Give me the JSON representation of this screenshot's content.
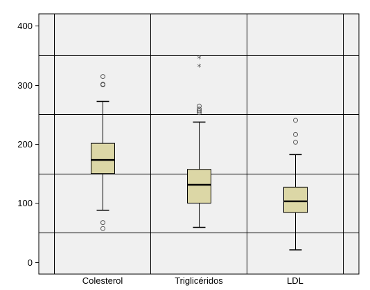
{
  "colors": {
    "plot_background": "#f0f0f0",
    "box_fill": "#dcd7a6",
    "line": "#000000",
    "outlier_marker": "#555555"
  },
  "chart_data": {
    "type": "boxplot",
    "categories": [
      "Colesterol",
      "Triglicéridos",
      "LDL"
    ],
    "ylim": [
      -20,
      420
    ],
    "yticks": [
      0,
      100,
      200,
      300,
      400
    ],
    "grid_lines_y": [
      50,
      150,
      250,
      350
    ],
    "grid": true,
    "boxes": [
      {
        "category": "Colesterol",
        "whisker_low": 88,
        "q1": 150,
        "median": 173,
        "q3": 201,
        "whisker_high": 272,
        "outliers": [
          57,
          67,
          300,
          301,
          314
        ],
        "extremes": []
      },
      {
        "category": "Triglicéridos",
        "whisker_low": 59,
        "q1": 100,
        "median": 131,
        "q3": 157,
        "whisker_high": 237,
        "outliers": [
          253,
          256,
          259,
          264
        ],
        "extremes": [
          331,
          345
        ]
      },
      {
        "category": "LDL",
        "whisker_low": 21,
        "q1": 84,
        "median": 103,
        "q3": 127,
        "whisker_high": 182,
        "outliers": [
          203,
          216,
          240
        ],
        "extremes": []
      }
    ]
  }
}
